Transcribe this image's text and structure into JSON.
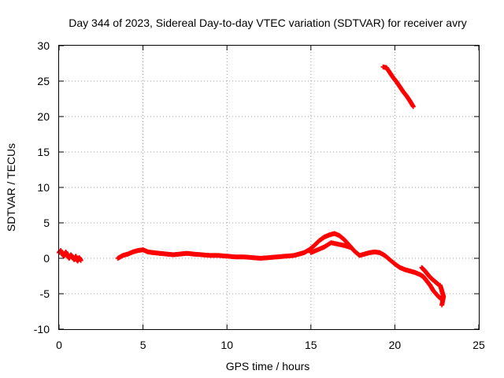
{
  "chart_data": {
    "type": "scatter",
    "title": "Day 344 of 2023, Sidereal Day-to-day VTEC variation (SDTVAR) for receiver avry",
    "xlabel": "GPS time / hours",
    "ylabel": "SDTVAR / TECUs",
    "xlim": [
      0,
      25
    ],
    "ylim": [
      -10,
      30
    ],
    "xticks": [
      "0",
      "5",
      "10",
      "15",
      "20",
      "25"
    ],
    "yticks": [
      "-10",
      "-5",
      "0",
      "5",
      "10",
      "15",
      "20",
      "25",
      "30"
    ],
    "grid": true,
    "marker": "plus",
    "series_color": "#ff0000",
    "series": [
      {
        "name": "avry",
        "segments": [
          [
            [
              0.0,
              0.8
            ],
            [
              0.1,
              1.1
            ],
            [
              0.2,
              0.6
            ],
            [
              0.3,
              0.3
            ],
            [
              0.4,
              0.9
            ],
            [
              0.5,
              0.4
            ],
            [
              0.6,
              0.0
            ],
            [
              0.7,
              0.5
            ],
            [
              0.8,
              0.2
            ],
            [
              0.9,
              -0.2
            ],
            [
              1.0,
              0.3
            ],
            [
              1.1,
              -0.4
            ],
            [
              1.2,
              0.1
            ],
            [
              1.3,
              -0.3
            ]
          ],
          [
            [
              3.5,
              0.0
            ],
            [
              3.8,
              0.4
            ],
            [
              4.1,
              0.6
            ],
            [
              4.4,
              0.9
            ],
            [
              4.7,
              1.1
            ],
            [
              5.0,
              1.2
            ],
            [
              5.3,
              0.9
            ],
            [
              5.6,
              0.8
            ],
            [
              6.0,
              0.7
            ],
            [
              6.4,
              0.6
            ],
            [
              6.8,
              0.5
            ],
            [
              7.2,
              0.6
            ],
            [
              7.6,
              0.7
            ],
            [
              8.0,
              0.6
            ],
            [
              8.5,
              0.5
            ],
            [
              9.0,
              0.4
            ],
            [
              9.5,
              0.4
            ],
            [
              10.0,
              0.3
            ],
            [
              10.5,
              0.2
            ],
            [
              11.0,
              0.2
            ],
            [
              11.5,
              0.1
            ],
            [
              12.0,
              0.0
            ],
            [
              12.5,
              0.1
            ],
            [
              13.0,
              0.2
            ],
            [
              13.5,
              0.3
            ],
            [
              14.0,
              0.4
            ],
            [
              14.3,
              0.6
            ],
            [
              14.6,
              0.8
            ],
            [
              14.9,
              1.2
            ],
            [
              15.2,
              1.8
            ],
            [
              15.5,
              2.5
            ],
            [
              15.8,
              3.0
            ],
            [
              16.1,
              3.3
            ],
            [
              16.4,
              3.5
            ],
            [
              16.7,
              3.2
            ],
            [
              17.0,
              2.6
            ],
            [
              17.3,
              1.8
            ],
            [
              17.6,
              1.0
            ],
            [
              17.9,
              0.4
            ],
            [
              18.2,
              0.6
            ],
            [
              18.5,
              0.8
            ],
            [
              18.8,
              0.9
            ],
            [
              19.1,
              0.8
            ],
            [
              19.4,
              0.4
            ],
            [
              19.7,
              -0.2
            ],
            [
              20.0,
              -0.8
            ],
            [
              20.3,
              -1.3
            ],
            [
              20.6,
              -1.6
            ],
            [
              20.9,
              -1.8
            ],
            [
              21.2,
              -2.0
            ],
            [
              21.5,
              -2.3
            ],
            [
              21.7,
              -2.6
            ],
            [
              21.9,
              -3.2
            ],
            [
              22.1,
              -3.8
            ],
            [
              22.3,
              -4.6
            ],
            [
              22.6,
              -5.4
            ],
            [
              22.8,
              -5.8
            ]
          ],
          [
            [
              15.0,
              0.8
            ],
            [
              15.4,
              1.2
            ],
            [
              15.8,
              1.6
            ],
            [
              16.2,
              2.2
            ],
            [
              16.6,
              2.0
            ],
            [
              17.0,
              1.8
            ],
            [
              17.4,
              1.5
            ]
          ],
          [
            [
              21.6,
              -1.3
            ],
            [
              21.8,
              -1.8
            ],
            [
              22.0,
              -2.4
            ],
            [
              22.2,
              -2.9
            ],
            [
              22.4,
              -3.3
            ],
            [
              22.6,
              -3.7
            ]
          ],
          [
            [
              22.7,
              -3.8
            ],
            [
              22.8,
              -4.6
            ],
            [
              22.9,
              -5.4
            ],
            [
              22.8,
              -6.6
            ]
          ],
          [
            [
              19.3,
              27.0
            ],
            [
              19.5,
              26.9
            ],
            [
              19.7,
              26.2
            ],
            [
              19.9,
              25.5
            ],
            [
              20.1,
              24.9
            ],
            [
              20.3,
              24.2
            ],
            [
              20.5,
              23.5
            ],
            [
              20.7,
              22.9
            ],
            [
              20.9,
              22.2
            ],
            [
              21.1,
              21.4
            ]
          ]
        ]
      }
    ]
  }
}
